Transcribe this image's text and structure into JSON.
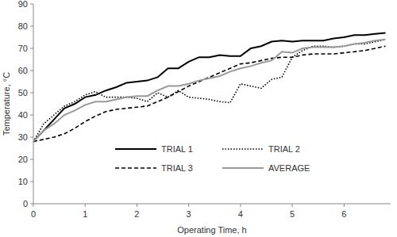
{
  "chart_data": {
    "type": "line",
    "x_label": "Operating Time, h",
    "y_label": "Temperature, °C",
    "x": [
      0,
      0.2,
      0.4,
      0.6,
      0.8,
      1.0,
      1.2,
      1.4,
      1.6,
      1.8,
      2.0,
      2.2,
      2.4,
      2.6,
      2.8,
      3.0,
      3.2,
      3.4,
      3.6,
      3.8,
      4.0,
      4.2,
      4.4,
      4.6,
      4.8,
      5.0,
      5.2,
      5.4,
      5.6,
      5.8,
      6.0,
      6.2,
      6.4,
      6.6,
      6.8
    ],
    "series": [
      {
        "name": "TRIAL 1",
        "color": "#000000",
        "line_style": "solid",
        "values": [
          28,
          33,
          38,
          43,
          45,
          48,
          49,
          51,
          52.5,
          54.5,
          55,
          55.5,
          57,
          61,
          61,
          64,
          66,
          66,
          67,
          66.5,
          66.5,
          70,
          71,
          73,
          73.5,
          73,
          73.5,
          73.5,
          73.5,
          74.5,
          75,
          76,
          76,
          76.5,
          77
        ]
      },
      {
        "name": "TRIAL 2",
        "color": "#000000",
        "line_style": "dotted",
        "values": [
          28,
          36,
          40,
          44,
          46,
          49,
          50.5,
          48,
          48,
          48,
          47.5,
          46,
          50,
          48,
          51,
          48,
          47.5,
          47,
          46,
          45.5,
          54,
          53,
          52,
          56,
          57,
          66,
          69,
          71,
          71,
          70.5,
          71,
          72,
          72,
          73,
          74
        ]
      },
      {
        "name": "TRIAL 3",
        "color": "#000000",
        "line_style": "dashed",
        "values": [
          28,
          29,
          30,
          31.5,
          34,
          37,
          39.5,
          41.5,
          42.5,
          43,
          43.5,
          44,
          46,
          48,
          50.5,
          53,
          55,
          57,
          59,
          61,
          63,
          63.5,
          64.5,
          65.5,
          66,
          66,
          67,
          67.5,
          67.5,
          67.5,
          68,
          68.5,
          69,
          70,
          71
        ]
      },
      {
        "name": "AVERAGE",
        "color": "#999999",
        "line_style": "solid",
        "values": [
          28,
          33,
          36,
          40,
          42,
          44.5,
          46,
          46,
          47,
          48,
          48.5,
          48.5,
          51,
          53,
          53,
          54,
          55.5,
          56.5,
          57.5,
          59.5,
          61,
          62,
          63.5,
          64.5,
          68.5,
          68,
          70,
          70.5,
          70.5,
          70.5,
          71,
          72,
          72.5,
          73.5,
          74
        ]
      }
    ],
    "xlim": [
      0,
      6.9
    ],
    "xticks": [
      0,
      1,
      2,
      3,
      4,
      5,
      6
    ],
    "ylim": [
      0,
      90
    ],
    "yticks": [
      0,
      10,
      20,
      30,
      40,
      50,
      60,
      70,
      80,
      90
    ],
    "grid": false,
    "legend": "bottom"
  }
}
